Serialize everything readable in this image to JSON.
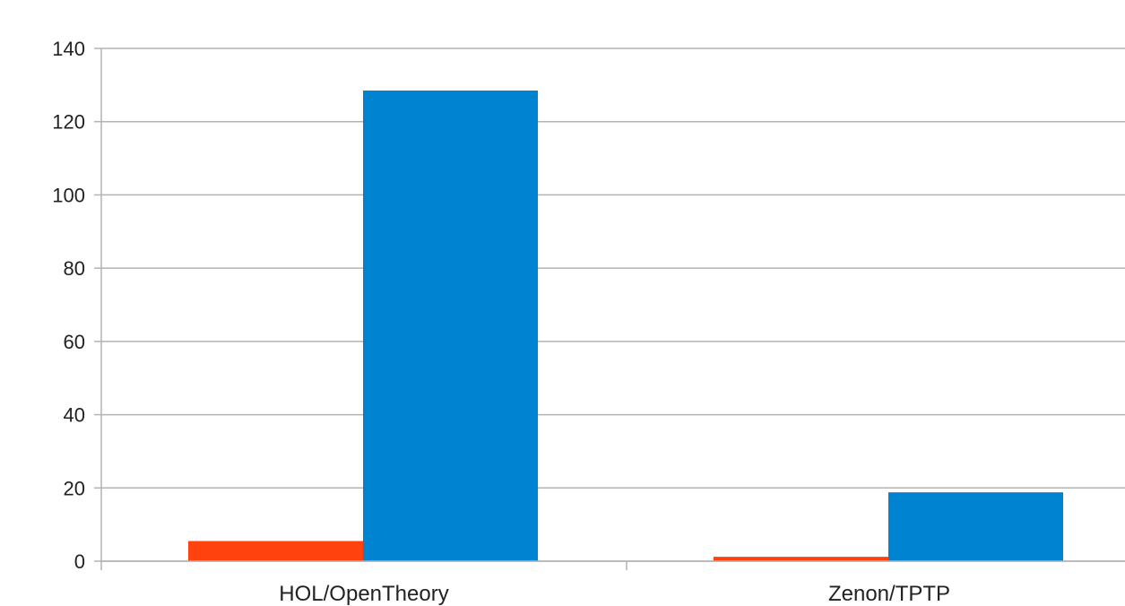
{
  "chart_data": {
    "type": "bar",
    "categories": [
      "HOL/OpenTheory",
      "Zenon/TPTP"
    ],
    "series": [
      {
        "color": "#ff420e",
        "values": [
          5.5,
          1.2
        ]
      },
      {
        "color": "#0084d1",
        "values": [
          128.5,
          18.8
        ]
      }
    ],
    "yticks": [
      0,
      20,
      40,
      60,
      80,
      100,
      120,
      140
    ],
    "ylim": [
      0,
      140
    ],
    "grid": true,
    "legend": "none"
  }
}
